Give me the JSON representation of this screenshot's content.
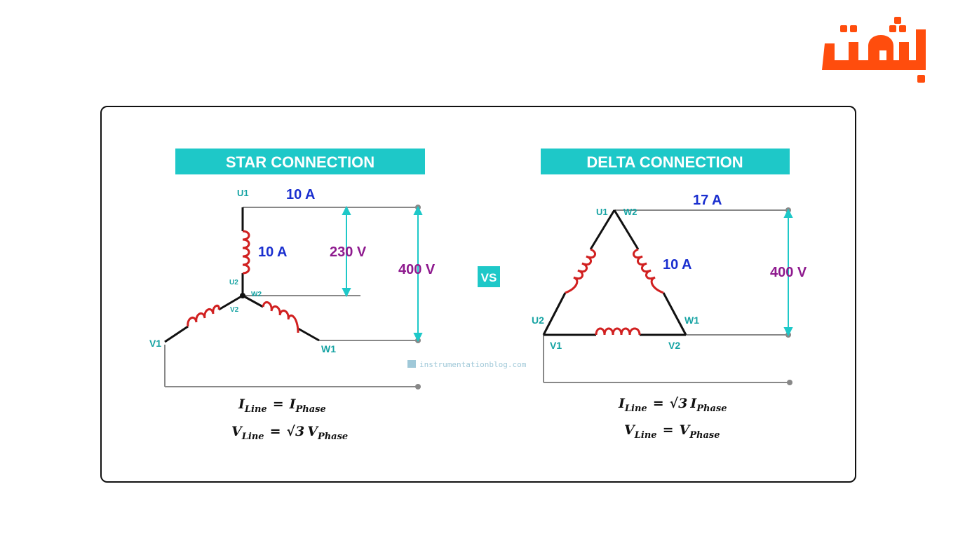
{
  "brand": {
    "logo_text": "بعثت",
    "color": "#ff4d0d"
  },
  "colors": {
    "teal": "#1ec8c8",
    "current": "#1a2fcf",
    "voltage": "#8e1a8e",
    "terminal": "#16a3a3",
    "coil": "#d12020",
    "wire": "#888888",
    "frame": "#111111"
  },
  "star": {
    "title": "STAR CONNECTION",
    "line_current": "10 A",
    "phase_current": "10 A",
    "phase_voltage": "230 V",
    "line_voltage": "400 V",
    "terminals": {
      "u1": "U1",
      "u2": "U2",
      "v1": "V1",
      "v2": "V2",
      "w1": "W1",
      "w2": "W2"
    },
    "formulas": {
      "current": {
        "lhs": "I",
        "lhs_sub": "Line",
        "eq": "=",
        "sqrt": "",
        "rhs": "I",
        "rhs_sub": "Phase"
      },
      "voltage": {
        "lhs": "V",
        "lhs_sub": "Line",
        "eq": "=",
        "sqrt": "√3",
        "rhs": "V",
        "rhs_sub": "Phase"
      }
    }
  },
  "vs_label": "VS",
  "watermark": "instrumentationblog.com",
  "delta": {
    "title": "DELTA CONNECTION",
    "line_current": "17 A",
    "phase_current": "10 A",
    "line_voltage": "400 V",
    "terminals": {
      "u1": "U1",
      "w2": "W2",
      "u2": "U2",
      "w1": "W1",
      "v1": "V1",
      "v2": "V2"
    },
    "formulas": {
      "current": {
        "lhs": "I",
        "lhs_sub": "Line",
        "eq": "=",
        "sqrt": "√3",
        "rhs": "I",
        "rhs_sub": "Phase"
      },
      "voltage": {
        "lhs": "V",
        "lhs_sub": "Line",
        "eq": "=",
        "sqrt": "",
        "rhs": "V",
        "rhs_sub": "Phase"
      }
    }
  }
}
